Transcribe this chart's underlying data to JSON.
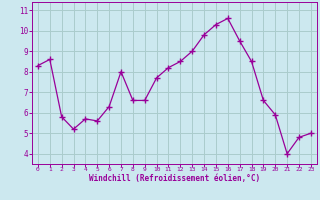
{
  "x": [
    0,
    1,
    2,
    3,
    4,
    5,
    6,
    7,
    8,
    9,
    10,
    11,
    12,
    13,
    14,
    15,
    16,
    17,
    18,
    19,
    20,
    21,
    22,
    23
  ],
  "y": [
    8.3,
    8.6,
    5.8,
    5.2,
    5.7,
    5.6,
    6.3,
    8.0,
    6.6,
    6.6,
    7.7,
    8.2,
    8.5,
    9.0,
    9.8,
    10.3,
    10.6,
    9.5,
    8.5,
    6.6,
    5.9,
    4.0,
    4.8,
    5.0
  ],
  "line_color": "#990099",
  "marker": "+",
  "marker_size": 4,
  "bg_color": "#cce8ef",
  "grid_color": "#aacccc",
  "xlabel": "Windchill (Refroidissement éolien,°C)",
  "xlabel_color": "#990099",
  "tick_color": "#990099",
  "ylim": [
    3.5,
    11.4
  ],
  "xlim": [
    -0.5,
    23.5
  ],
  "yticks": [
    4,
    5,
    6,
    7,
    8,
    9,
    10,
    11
  ],
  "xticks": [
    0,
    1,
    2,
    3,
    4,
    5,
    6,
    7,
    8,
    9,
    10,
    11,
    12,
    13,
    14,
    15,
    16,
    17,
    18,
    19,
    20,
    21,
    22,
    23
  ]
}
